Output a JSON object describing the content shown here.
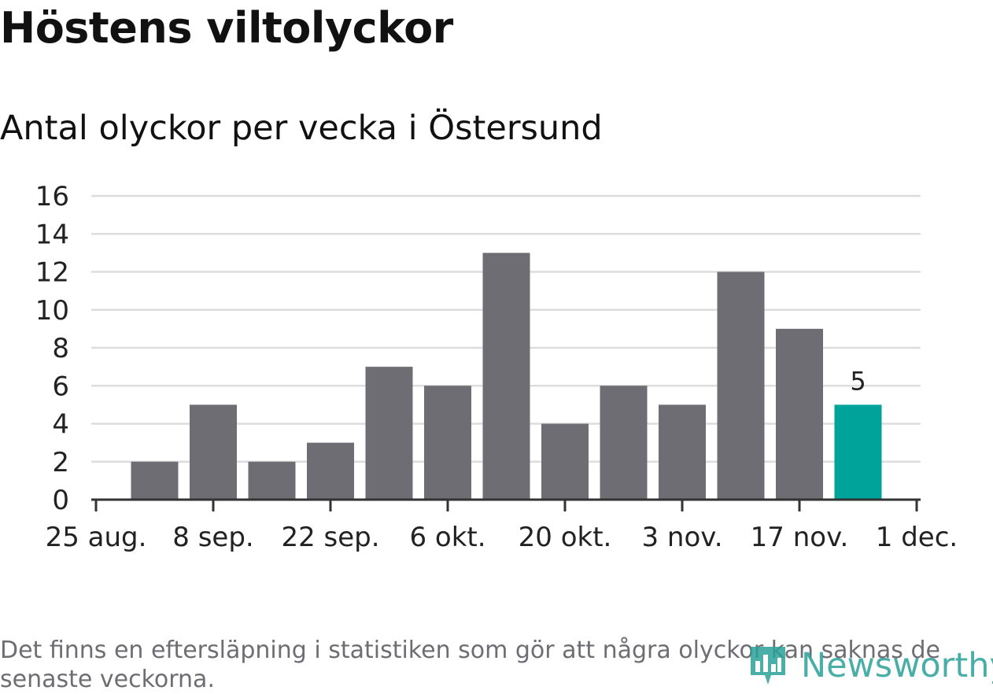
{
  "title": "Höstens viltolyckor",
  "subtitle": "Antal olyckor per vecka i Östersund",
  "footnote": "Det finns en eftersläpning i statistiken som gör att några olyckor kan saknas de senaste veckorna.",
  "brand": {
    "name": "Newsworthy",
    "icon": "bar-chart-logo-icon"
  },
  "colors": {
    "bar": "#6e6d73",
    "highlight": "#00a39a",
    "grid": "#dddddd",
    "axis": "#333333",
    "text": "#222222"
  },
  "chart_data": {
    "type": "bar",
    "x_tick_labels": [
      "25 aug.",
      "8 sep.",
      "22 sep.",
      "6 okt.",
      "20 okt.",
      "3 nov.",
      "17 nov.",
      "1 dec."
    ],
    "y_tick_labels": [
      "0",
      "2",
      "4",
      "6",
      "8",
      "10",
      "12",
      "14",
      "16"
    ],
    "ylim": [
      0,
      16
    ],
    "values": [
      2,
      5,
      2,
      3,
      7,
      6,
      13,
      4,
      6,
      5,
      12,
      9,
      5
    ],
    "highlight_last": true,
    "highlight_label": "5",
    "grid": true,
    "legend": "none"
  }
}
